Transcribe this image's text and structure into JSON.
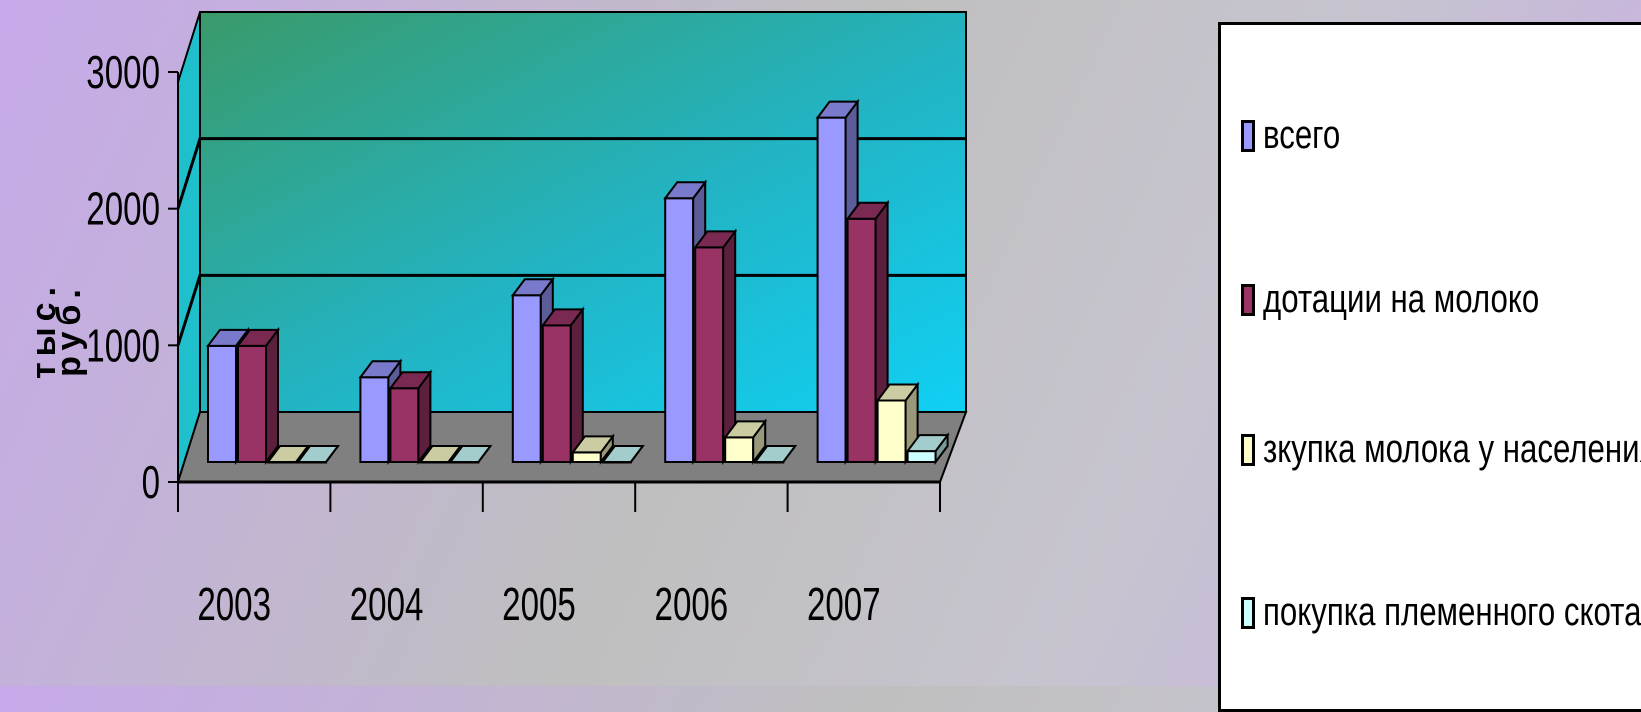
{
  "chart_data": {
    "type": "bar",
    "title": "",
    "xlabel": "",
    "ylabel": [
      "тыс.",
      "руб."
    ],
    "categories": [
      "2003",
      "2004",
      "2005",
      "2006",
      "2007"
    ],
    "ylim": [
      0,
      3000
    ],
    "yticks": [
      "0",
      "1000",
      "2000",
      "3000"
    ],
    "grid": true,
    "legend_position": "right",
    "series": [
      {
        "name": "всего",
        "color": "#9999ff",
        "values": [
          850,
          620,
          1220,
          1930,
          2520
        ]
      },
      {
        "name": "дотации на молоко",
        "color": "#993366",
        "values": [
          850,
          540,
          1000,
          1570,
          1780
        ]
      },
      {
        "name": "зкупка молока у населения",
        "color": "#ffffcc",
        "values": [
          0,
          0,
          70,
          180,
          450
        ]
      },
      {
        "name": "покупка племенного скота",
        "color": "#ccffff",
        "values": [
          0,
          0,
          0,
          0,
          80
        ]
      }
    ]
  }
}
